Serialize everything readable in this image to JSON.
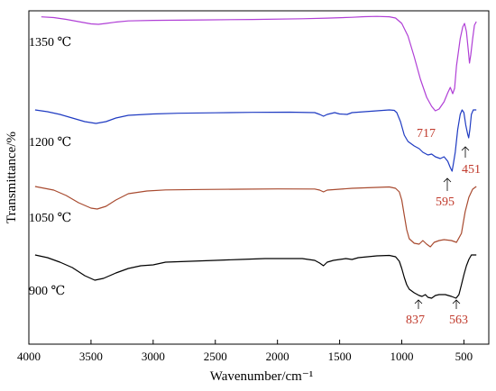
{
  "chart_data": {
    "type": "line",
    "title": "",
    "xlabel": "Wavenumber/cm⁻¹",
    "ylabel": "Transmittance/%",
    "xlim": [
      4000,
      300
    ],
    "x_ticks": [
      4000,
      3500,
      3000,
      2500,
      2000,
      1500,
      1000,
      500
    ],
    "y_ticks_shown": false,
    "grid": false,
    "legend": "none",
    "series": [
      {
        "name": "1350 ℃",
        "color": "#b03fd6",
        "points": [
          [
            3900,
            0.7
          ],
          [
            3800,
            1.5
          ],
          [
            3700,
            3.5
          ],
          [
            3600,
            6
          ],
          [
            3500,
            8.5
          ],
          [
            3440,
            9
          ],
          [
            3380,
            8
          ],
          [
            3300,
            6.5
          ],
          [
            3200,
            5.2
          ],
          [
            3000,
            4.6
          ],
          [
            2600,
            4.1
          ],
          [
            2200,
            3.6
          ],
          [
            1800,
            2.8
          ],
          [
            1600,
            2.1
          ],
          [
            1400,
            1.2
          ],
          [
            1300,
            0.5
          ],
          [
            1200,
            0.2
          ],
          [
            1100,
            0.6
          ],
          [
            1050,
            2
          ],
          [
            1000,
            8
          ],
          [
            950,
            22
          ],
          [
            900,
            45
          ],
          [
            850,
            70
          ],
          [
            800,
            90
          ],
          [
            760,
            100
          ],
          [
            730,
            105
          ],
          [
            700,
            103
          ],
          [
            660,
            95
          ],
          [
            630,
            85
          ],
          [
            610,
            79
          ],
          [
            590,
            86
          ],
          [
            575,
            80
          ],
          [
            560,
            55
          ],
          [
            530,
            25
          ],
          [
            510,
            12
          ],
          [
            495,
            8
          ],
          [
            480,
            17
          ],
          [
            465,
            38
          ],
          [
            455,
            52
          ],
          [
            445,
            43
          ],
          [
            430,
            25
          ],
          [
            415,
            10
          ],
          [
            400,
            6
          ]
        ]
      },
      {
        "name": "1200 ℃",
        "color": "#1f3bc2",
        "points": [
          [
            3950,
            0
          ],
          [
            3850,
            2
          ],
          [
            3750,
            5
          ],
          [
            3650,
            9
          ],
          [
            3550,
            13
          ],
          [
            3460,
            15
          ],
          [
            3380,
            13
          ],
          [
            3300,
            9
          ],
          [
            3200,
            6
          ],
          [
            3000,
            4.5
          ],
          [
            2800,
            3.7
          ],
          [
            2500,
            3.2
          ],
          [
            2200,
            2.7
          ],
          [
            1900,
            2.5
          ],
          [
            1700,
            3
          ],
          [
            1660,
            5
          ],
          [
            1630,
            7
          ],
          [
            1600,
            5
          ],
          [
            1540,
            3
          ],
          [
            1500,
            4.5
          ],
          [
            1440,
            5
          ],
          [
            1400,
            3
          ],
          [
            1200,
            1
          ],
          [
            1100,
            0
          ],
          [
            1060,
            0.5
          ],
          [
            1040,
            3
          ],
          [
            1010,
            13
          ],
          [
            980,
            28
          ],
          [
            950,
            35
          ],
          [
            900,
            40
          ],
          [
            860,
            43
          ],
          [
            830,
            47
          ],
          [
            790,
            50
          ],
          [
            760,
            49
          ],
          [
            730,
            52
          ],
          [
            690,
            54
          ],
          [
            660,
            52
          ],
          [
            630,
            57
          ],
          [
            610,
            64
          ],
          [
            595,
            68
          ],
          [
            585,
            60
          ],
          [
            570,
            47
          ],
          [
            550,
            22
          ],
          [
            530,
            5
          ],
          [
            515,
            0
          ],
          [
            500,
            3
          ],
          [
            485,
            17
          ],
          [
            470,
            27
          ],
          [
            462,
            31
          ],
          [
            452,
            22
          ],
          [
            440,
            5
          ],
          [
            425,
            0
          ],
          [
            400,
            0
          ]
        ]
      },
      {
        "name": "1050 ℃",
        "color": "#a84a2f",
        "points": [
          [
            3950,
            0
          ],
          [
            3800,
            4
          ],
          [
            3700,
            10
          ],
          [
            3600,
            18
          ],
          [
            3500,
            24
          ],
          [
            3450,
            25
          ],
          [
            3380,
            22
          ],
          [
            3300,
            15
          ],
          [
            3200,
            8
          ],
          [
            3050,
            5
          ],
          [
            2900,
            3.8
          ],
          [
            2600,
            3.3
          ],
          [
            2300,
            3
          ],
          [
            2000,
            2.7
          ],
          [
            1700,
            2.8
          ],
          [
            1660,
            4
          ],
          [
            1630,
            6
          ],
          [
            1600,
            4
          ],
          [
            1500,
            3
          ],
          [
            1400,
            2
          ],
          [
            1200,
            1
          ],
          [
            1100,
            0.5
          ],
          [
            1050,
            2
          ],
          [
            1020,
            6
          ],
          [
            1000,
            15
          ],
          [
            980,
            32
          ],
          [
            960,
            48
          ],
          [
            940,
            58
          ],
          [
            900,
            63
          ],
          [
            860,
            64
          ],
          [
            830,
            60
          ],
          [
            800,
            64
          ],
          [
            770,
            67
          ],
          [
            740,
            62
          ],
          [
            700,
            60
          ],
          [
            660,
            59
          ],
          [
            600,
            60
          ],
          [
            560,
            62
          ],
          [
            520,
            52
          ],
          [
            490,
            28
          ],
          [
            460,
            12
          ],
          [
            430,
            3
          ],
          [
            400,
            0
          ]
        ]
      },
      {
        "name": "900 ℃",
        "color": "#000000",
        "points": [
          [
            3950,
            0
          ],
          [
            3850,
            3
          ],
          [
            3750,
            8
          ],
          [
            3650,
            14
          ],
          [
            3550,
            23
          ],
          [
            3470,
            28
          ],
          [
            3400,
            26
          ],
          [
            3300,
            20
          ],
          [
            3200,
            15
          ],
          [
            3100,
            12
          ],
          [
            3000,
            11
          ],
          [
            2900,
            8
          ],
          [
            2700,
            7
          ],
          [
            2500,
            6
          ],
          [
            2300,
            5
          ],
          [
            2100,
            4
          ],
          [
            1800,
            4
          ],
          [
            1700,
            6
          ],
          [
            1660,
            9
          ],
          [
            1630,
            12
          ],
          [
            1600,
            8
          ],
          [
            1550,
            6
          ],
          [
            1500,
            5
          ],
          [
            1450,
            4
          ],
          [
            1400,
            5
          ],
          [
            1350,
            3
          ],
          [
            1200,
            1
          ],
          [
            1100,
            0.5
          ],
          [
            1050,
            2
          ],
          [
            1020,
            7
          ],
          [
            1000,
            15
          ],
          [
            980,
            25
          ],
          [
            960,
            33
          ],
          [
            940,
            38
          ],
          [
            900,
            42
          ],
          [
            860,
            45
          ],
          [
            837,
            46
          ],
          [
            810,
            44
          ],
          [
            790,
            47
          ],
          [
            760,
            48
          ],
          [
            730,
            45
          ],
          [
            700,
            44
          ],
          [
            650,
            44
          ],
          [
            600,
            46
          ],
          [
            563,
            48
          ],
          [
            540,
            44
          ],
          [
            520,
            33
          ],
          [
            500,
            22
          ],
          [
            480,
            12
          ],
          [
            460,
            5
          ],
          [
            440,
            0
          ],
          [
            400,
            0
          ]
        ]
      }
    ],
    "series_labels": [
      "1350 ℃",
      "1200 ℃",
      "1050 ℃",
      "900 ℃"
    ],
    "annotations": [
      {
        "text": "717",
        "x": 717
      },
      {
        "text": "595",
        "x": 595
      },
      {
        "text": "451",
        "x": 451
      },
      {
        "text": "837",
        "x": 837
      },
      {
        "text": "563",
        "x": 563
      }
    ]
  }
}
